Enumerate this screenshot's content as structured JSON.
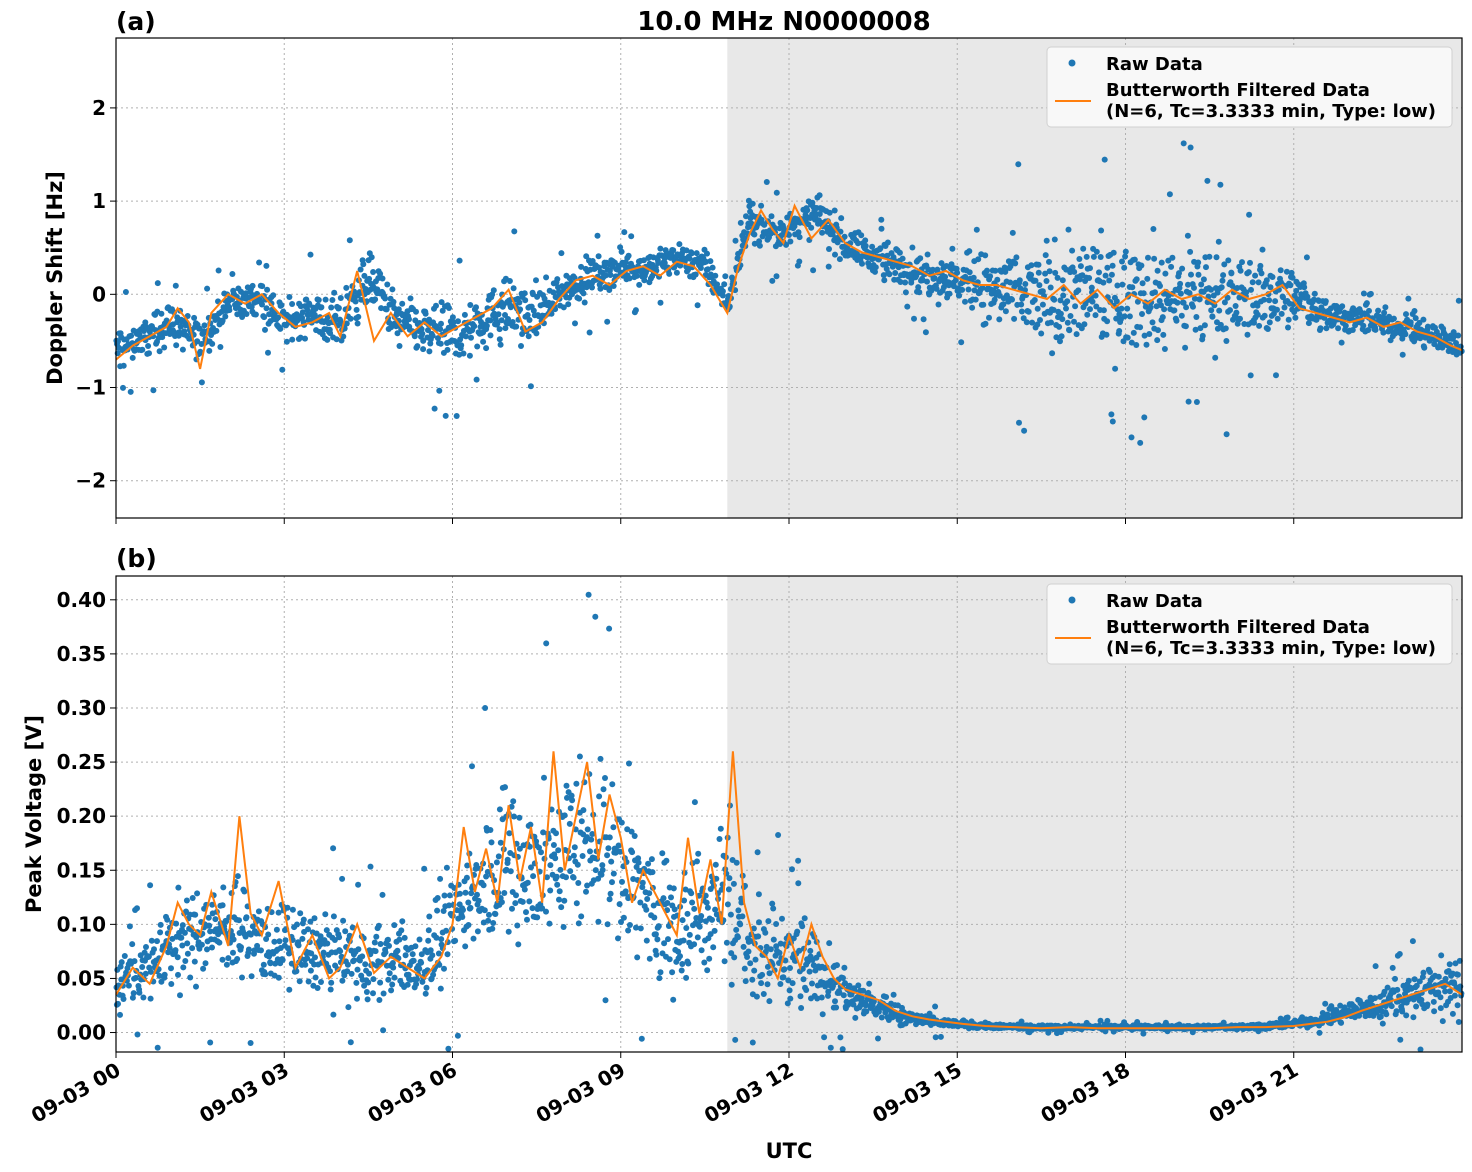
{
  "title": "10.0 MHz N0000008",
  "colors": {
    "raw": "#1f77b4",
    "filtered": "#ff7f0e",
    "shade": "#e8e8e8",
    "grid": "#b0b0b0"
  },
  "legend": {
    "raw": "Raw Data",
    "filtered_line1": "Butterworth Filtered Data",
    "filtered_line2": "(N=6, Tc=3.3333 min, Type: low)"
  },
  "xlabel": "UTC",
  "x_ticks": [
    "09-03 00",
    "09-03 03",
    "09-03 06",
    "09-03 09",
    "09-03 12",
    "09-03 15",
    "09-03 18",
    "09-03 21"
  ],
  "chart_data": [
    {
      "type": "scatter",
      "panel": "(a)",
      "title": "10.0 MHz N0000008",
      "xlabel": "",
      "ylabel": "Doppler Shift [Hz]",
      "x_unit": "hours UTC on 09-03",
      "xlim": [
        0,
        24
      ],
      "ylim": [
        -2.4,
        2.75
      ],
      "y_ticks": [
        "2",
        "1",
        "0",
        "−1",
        "−2"
      ],
      "y_tick_values": [
        2,
        1,
        0,
        -1,
        -2
      ],
      "grid": true,
      "legend_position": "top-right",
      "shaded_region": [
        10.9,
        24
      ],
      "series": [
        {
          "name": "Raw Data",
          "kind": "points",
          "x": [
            0,
            0.5,
            1.0,
            1.5,
            2.0,
            2.5,
            3.0,
            3.5,
            4.0,
            4.5,
            5.0,
            5.5,
            6.0,
            6.5,
            7.0,
            7.5,
            8.0,
            8.5,
            9.0,
            9.5,
            10.0,
            10.5,
            10.9,
            11.3,
            11.7,
            12.0,
            12.5,
            13.0,
            13.5,
            14.0,
            14.5,
            15.0,
            15.5,
            16.0,
            16.5,
            17.0,
            17.5,
            18.0,
            18.5,
            19.0,
            19.5,
            20.0,
            20.5,
            21.0,
            21.5,
            22.0,
            22.5,
            23.0,
            23.5,
            24.0
          ],
          "y": [
            -0.6,
            -0.45,
            -0.3,
            -0.5,
            -0.1,
            -0.05,
            -0.3,
            -0.2,
            -0.35,
            0.2,
            -0.3,
            -0.4,
            -0.45,
            -0.3,
            -0.15,
            -0.2,
            0.05,
            0.2,
            0.3,
            0.25,
            0.4,
            0.3,
            -0.1,
            0.8,
            0.65,
            0.7,
            0.85,
            0.55,
            0.4,
            0.3,
            0.2,
            0.15,
            0.05,
            0.0,
            -0.05,
            0.0,
            0.0,
            -0.05,
            0.0,
            -0.05,
            0.0,
            -0.05,
            0.0,
            0.0,
            -0.2,
            -0.25,
            -0.3,
            -0.35,
            -0.45,
            -0.55
          ],
          "spread": [
            0.35,
            0.3,
            0.35,
            0.3,
            0.25,
            0.3,
            0.3,
            0.35,
            0.45,
            0.4,
            0.45,
            0.4,
            0.45,
            0.4,
            0.5,
            0.4,
            0.3,
            0.3,
            0.25,
            0.25,
            0.25,
            0.25,
            0.2,
            0.3,
            0.3,
            0.3,
            0.3,
            0.3,
            0.25,
            0.3,
            0.35,
            0.4,
            0.55,
            0.7,
            0.8,
            0.85,
            0.85,
            0.85,
            0.85,
            0.85,
            0.8,
            0.7,
            0.6,
            0.45,
            0.25,
            0.22,
            0.22,
            0.22,
            0.25,
            0.25
          ]
        },
        {
          "name": "Butterworth Filtered Data\n(N=6, Tc=3.3333 min, Type: low)",
          "kind": "line",
          "x": [
            0,
            0.3,
            0.6,
            0.9,
            1.1,
            1.3,
            1.5,
            1.7,
            2.0,
            2.3,
            2.6,
            2.9,
            3.2,
            3.5,
            3.8,
            4.0,
            4.3,
            4.6,
            4.9,
            5.2,
            5.5,
            5.8,
            6.1,
            6.4,
            6.7,
            7.0,
            7.3,
            7.6,
            7.9,
            8.2,
            8.5,
            8.8,
            9.1,
            9.4,
            9.7,
            10.0,
            10.3,
            10.6,
            10.9,
            11.1,
            11.3,
            11.5,
            11.7,
            11.9,
            12.1,
            12.4,
            12.7,
            13.0,
            13.3,
            13.6,
            13.9,
            14.2,
            14.5,
            14.8,
            15.1,
            15.4,
            15.7,
            16.0,
            16.3,
            16.6,
            16.9,
            17.2,
            17.5,
            17.8,
            18.1,
            18.4,
            18.7,
            19.0,
            19.3,
            19.6,
            19.9,
            20.2,
            20.5,
            20.8,
            21.1,
            21.4,
            21.7,
            22.0,
            22.3,
            22.6,
            22.9,
            23.2,
            23.5,
            23.8,
            24.0
          ],
          "y": [
            -0.7,
            -0.55,
            -0.45,
            -0.35,
            -0.15,
            -0.3,
            -0.8,
            -0.2,
            0.0,
            -0.1,
            0.0,
            -0.2,
            -0.35,
            -0.3,
            -0.2,
            -0.45,
            0.25,
            -0.5,
            -0.2,
            -0.45,
            -0.3,
            -0.45,
            -0.35,
            -0.25,
            -0.15,
            0.05,
            -0.4,
            -0.3,
            -0.05,
            0.15,
            0.2,
            0.1,
            0.25,
            0.3,
            0.2,
            0.35,
            0.3,
            0.1,
            -0.2,
            0.3,
            0.65,
            0.9,
            0.7,
            0.55,
            0.95,
            0.6,
            0.8,
            0.55,
            0.45,
            0.4,
            0.35,
            0.3,
            0.2,
            0.25,
            0.15,
            0.1,
            0.1,
            0.05,
            0.0,
            -0.05,
            0.1,
            -0.1,
            0.05,
            -0.15,
            0.0,
            -0.1,
            0.05,
            -0.05,
            0.0,
            -0.1,
            0.05,
            -0.05,
            0.0,
            0.1,
            -0.15,
            -0.2,
            -0.25,
            -0.3,
            -0.25,
            -0.35,
            -0.3,
            -0.4,
            -0.45,
            -0.55,
            -0.6
          ]
        }
      ]
    },
    {
      "type": "scatter",
      "panel": "(b)",
      "title": "",
      "xlabel": "UTC",
      "ylabel": "Peak Voltage [V]",
      "x_unit": "hours UTC on 09-03",
      "xlim": [
        0,
        24
      ],
      "ylim": [
        -0.018,
        0.422
      ],
      "y_ticks": [
        "0.40",
        "0.35",
        "0.30",
        "0.25",
        "0.20",
        "0.15",
        "0.10",
        "0.05",
        "0.00"
      ],
      "y_tick_values": [
        0.4,
        0.35,
        0.3,
        0.25,
        0.2,
        0.15,
        0.1,
        0.05,
        0.0
      ],
      "grid": true,
      "legend_position": "top-right",
      "shaded_region": [
        10.9,
        24
      ],
      "series": [
        {
          "name": "Raw Data",
          "kind": "points",
          "x": [
            0,
            0.5,
            1.0,
            1.5,
            2.0,
            2.5,
            3.0,
            3.5,
            4.0,
            4.5,
            5.0,
            5.5,
            6.0,
            6.5,
            7.0,
            7.5,
            8.0,
            8.5,
            9.0,
            9.5,
            10.0,
            10.5,
            10.9,
            11.3,
            11.7,
            12.0,
            12.5,
            13.0,
            13.5,
            14.0,
            14.5,
            15.0,
            15.5,
            16.0,
            16.5,
            17.0,
            17.5,
            18.0,
            18.5,
            19.0,
            19.5,
            20.0,
            20.5,
            21.0,
            21.5,
            22.0,
            22.5,
            23.0,
            23.5,
            24.0
          ],
          "y": [
            0.045,
            0.06,
            0.08,
            0.09,
            0.1,
            0.085,
            0.08,
            0.075,
            0.07,
            0.06,
            0.07,
            0.065,
            0.1,
            0.14,
            0.16,
            0.15,
            0.17,
            0.18,
            0.16,
            0.12,
            0.1,
            0.11,
            0.14,
            0.08,
            0.07,
            0.07,
            0.06,
            0.04,
            0.025,
            0.015,
            0.01,
            0.008,
            0.006,
            0.005,
            0.005,
            0.005,
            0.005,
            0.005,
            0.005,
            0.005,
            0.005,
            0.005,
            0.006,
            0.008,
            0.012,
            0.02,
            0.025,
            0.035,
            0.04,
            0.04
          ],
          "spread": [
            0.035,
            0.04,
            0.06,
            0.06,
            0.07,
            0.06,
            0.06,
            0.05,
            0.06,
            0.05,
            0.05,
            0.05,
            0.08,
            0.09,
            0.1,
            0.11,
            0.12,
            0.12,
            0.11,
            0.09,
            0.08,
            0.09,
            0.12,
            0.07,
            0.06,
            0.06,
            0.05,
            0.03,
            0.02,
            0.012,
            0.008,
            0.005,
            0.004,
            0.003,
            0.003,
            0.003,
            0.003,
            0.003,
            0.003,
            0.003,
            0.003,
            0.003,
            0.004,
            0.005,
            0.009,
            0.015,
            0.02,
            0.028,
            0.035,
            0.04
          ]
        },
        {
          "name": "Butterworth Filtered Data\n(N=6, Tc=3.3333 min, Type: low)",
          "kind": "line",
          "x": [
            0,
            0.3,
            0.6,
            0.9,
            1.1,
            1.3,
            1.5,
            1.7,
            2.0,
            2.2,
            2.4,
            2.6,
            2.9,
            3.2,
            3.5,
            3.8,
            4.0,
            4.3,
            4.6,
            4.9,
            5.2,
            5.5,
            5.8,
            6.0,
            6.2,
            6.4,
            6.6,
            6.8,
            7.0,
            7.2,
            7.4,
            7.6,
            7.8,
            8.0,
            8.2,
            8.4,
            8.6,
            8.8,
            9.0,
            9.2,
            9.4,
            9.6,
            9.8,
            10.0,
            10.2,
            10.4,
            10.6,
            10.8,
            11.0,
            11.2,
            11.4,
            11.6,
            11.8,
            12.0,
            12.2,
            12.4,
            12.6,
            12.8,
            13.0,
            13.3,
            13.6,
            13.9,
            14.2,
            14.5,
            14.8,
            15.1,
            15.5,
            16.0,
            16.5,
            17.0,
            17.5,
            18.0,
            18.5,
            19.0,
            19.5,
            20.0,
            20.5,
            21.0,
            21.3,
            21.6,
            21.9,
            22.2,
            22.5,
            22.8,
            23.1,
            23.4,
            23.7,
            24.0
          ],
          "y": [
            0.035,
            0.06,
            0.045,
            0.08,
            0.12,
            0.1,
            0.09,
            0.13,
            0.08,
            0.2,
            0.11,
            0.09,
            0.14,
            0.06,
            0.09,
            0.05,
            0.06,
            0.1,
            0.055,
            0.07,
            0.06,
            0.05,
            0.07,
            0.1,
            0.19,
            0.13,
            0.17,
            0.12,
            0.21,
            0.14,
            0.19,
            0.12,
            0.26,
            0.15,
            0.2,
            0.25,
            0.16,
            0.22,
            0.18,
            0.12,
            0.15,
            0.13,
            0.11,
            0.09,
            0.18,
            0.11,
            0.16,
            0.1,
            0.26,
            0.12,
            0.08,
            0.07,
            0.05,
            0.09,
            0.06,
            0.1,
            0.07,
            0.05,
            0.04,
            0.035,
            0.03,
            0.02,
            0.015,
            0.012,
            0.01,
            0.008,
            0.006,
            0.005,
            0.004,
            0.005,
            0.004,
            0.004,
            0.004,
            0.004,
            0.004,
            0.005,
            0.005,
            0.006,
            0.008,
            0.01,
            0.014,
            0.02,
            0.025,
            0.03,
            0.035,
            0.04,
            0.045,
            0.035
          ]
        }
      ]
    }
  ]
}
